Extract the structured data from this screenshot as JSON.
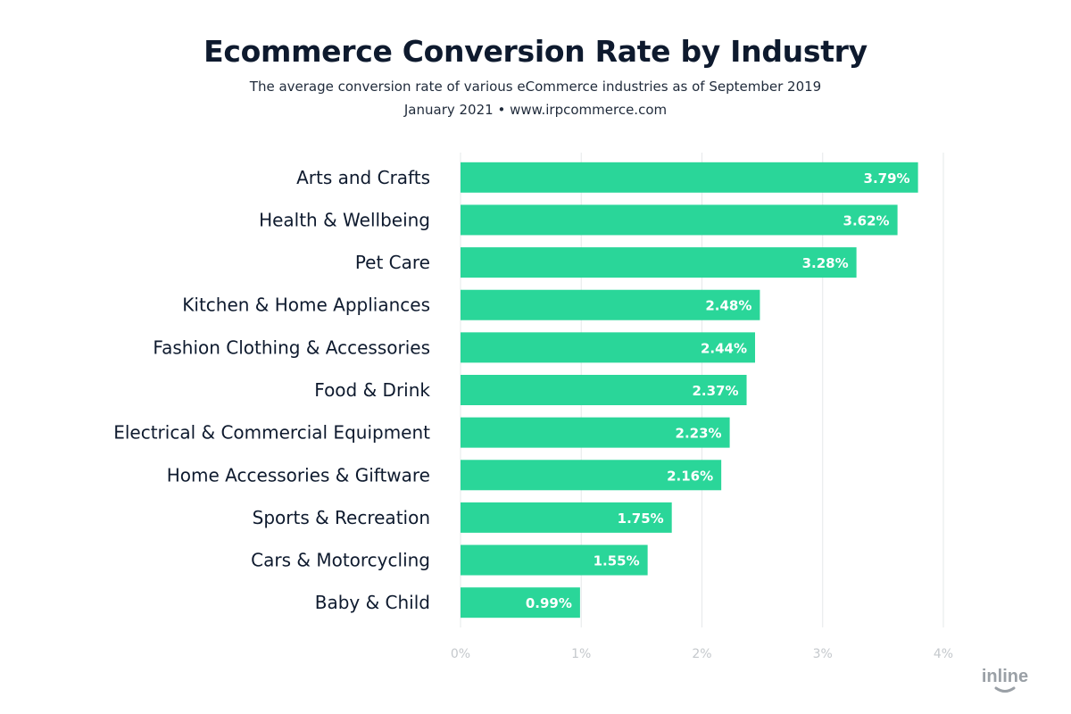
{
  "header": {
    "title": "Ecommerce Conversion Rate by Industry",
    "subtitle": "The average conversion rate of various eCommerce industries as of September 2019",
    "source": "January 2021 • www.irpcommerce.com"
  },
  "brand": {
    "logo_text": "inline",
    "logo_color": "#9aa0a6"
  },
  "colors": {
    "bar": "#2ad699",
    "bar_label": "#ffffff",
    "category_label": "#0e1a2e",
    "tick_label": "#c4c8cc",
    "grid": "#e6e8ea"
  },
  "chart_data": {
    "type": "bar",
    "orientation": "horizontal",
    "categories": [
      "Arts and Crafts",
      "Health & Wellbeing",
      "Pet Care",
      "Kitchen & Home Appliances",
      "Fashion Clothing & Accessories",
      "Food & Drink",
      "Electrical & Commercial Equipment",
      "Home Accessories & Giftware",
      "Sports & Recreation",
      "Cars & Motorcycling",
      "Baby & Child"
    ],
    "values": [
      3.79,
      3.62,
      3.28,
      2.48,
      2.44,
      2.37,
      2.23,
      2.16,
      1.75,
      1.55,
      0.99
    ],
    "value_labels": [
      "3.79%",
      "3.62%",
      "3.28%",
      "2.48%",
      "2.44%",
      "2.37%",
      "2.23%",
      "2.16%",
      "1.75%",
      "1.55%",
      "0.99%"
    ],
    "xlim": [
      0,
      4
    ],
    "x_ticks": [
      0,
      1,
      2,
      3,
      4
    ],
    "x_tick_labels": [
      "0%",
      "1%",
      "2%",
      "3%",
      "4%"
    ],
    "grid": true
  }
}
